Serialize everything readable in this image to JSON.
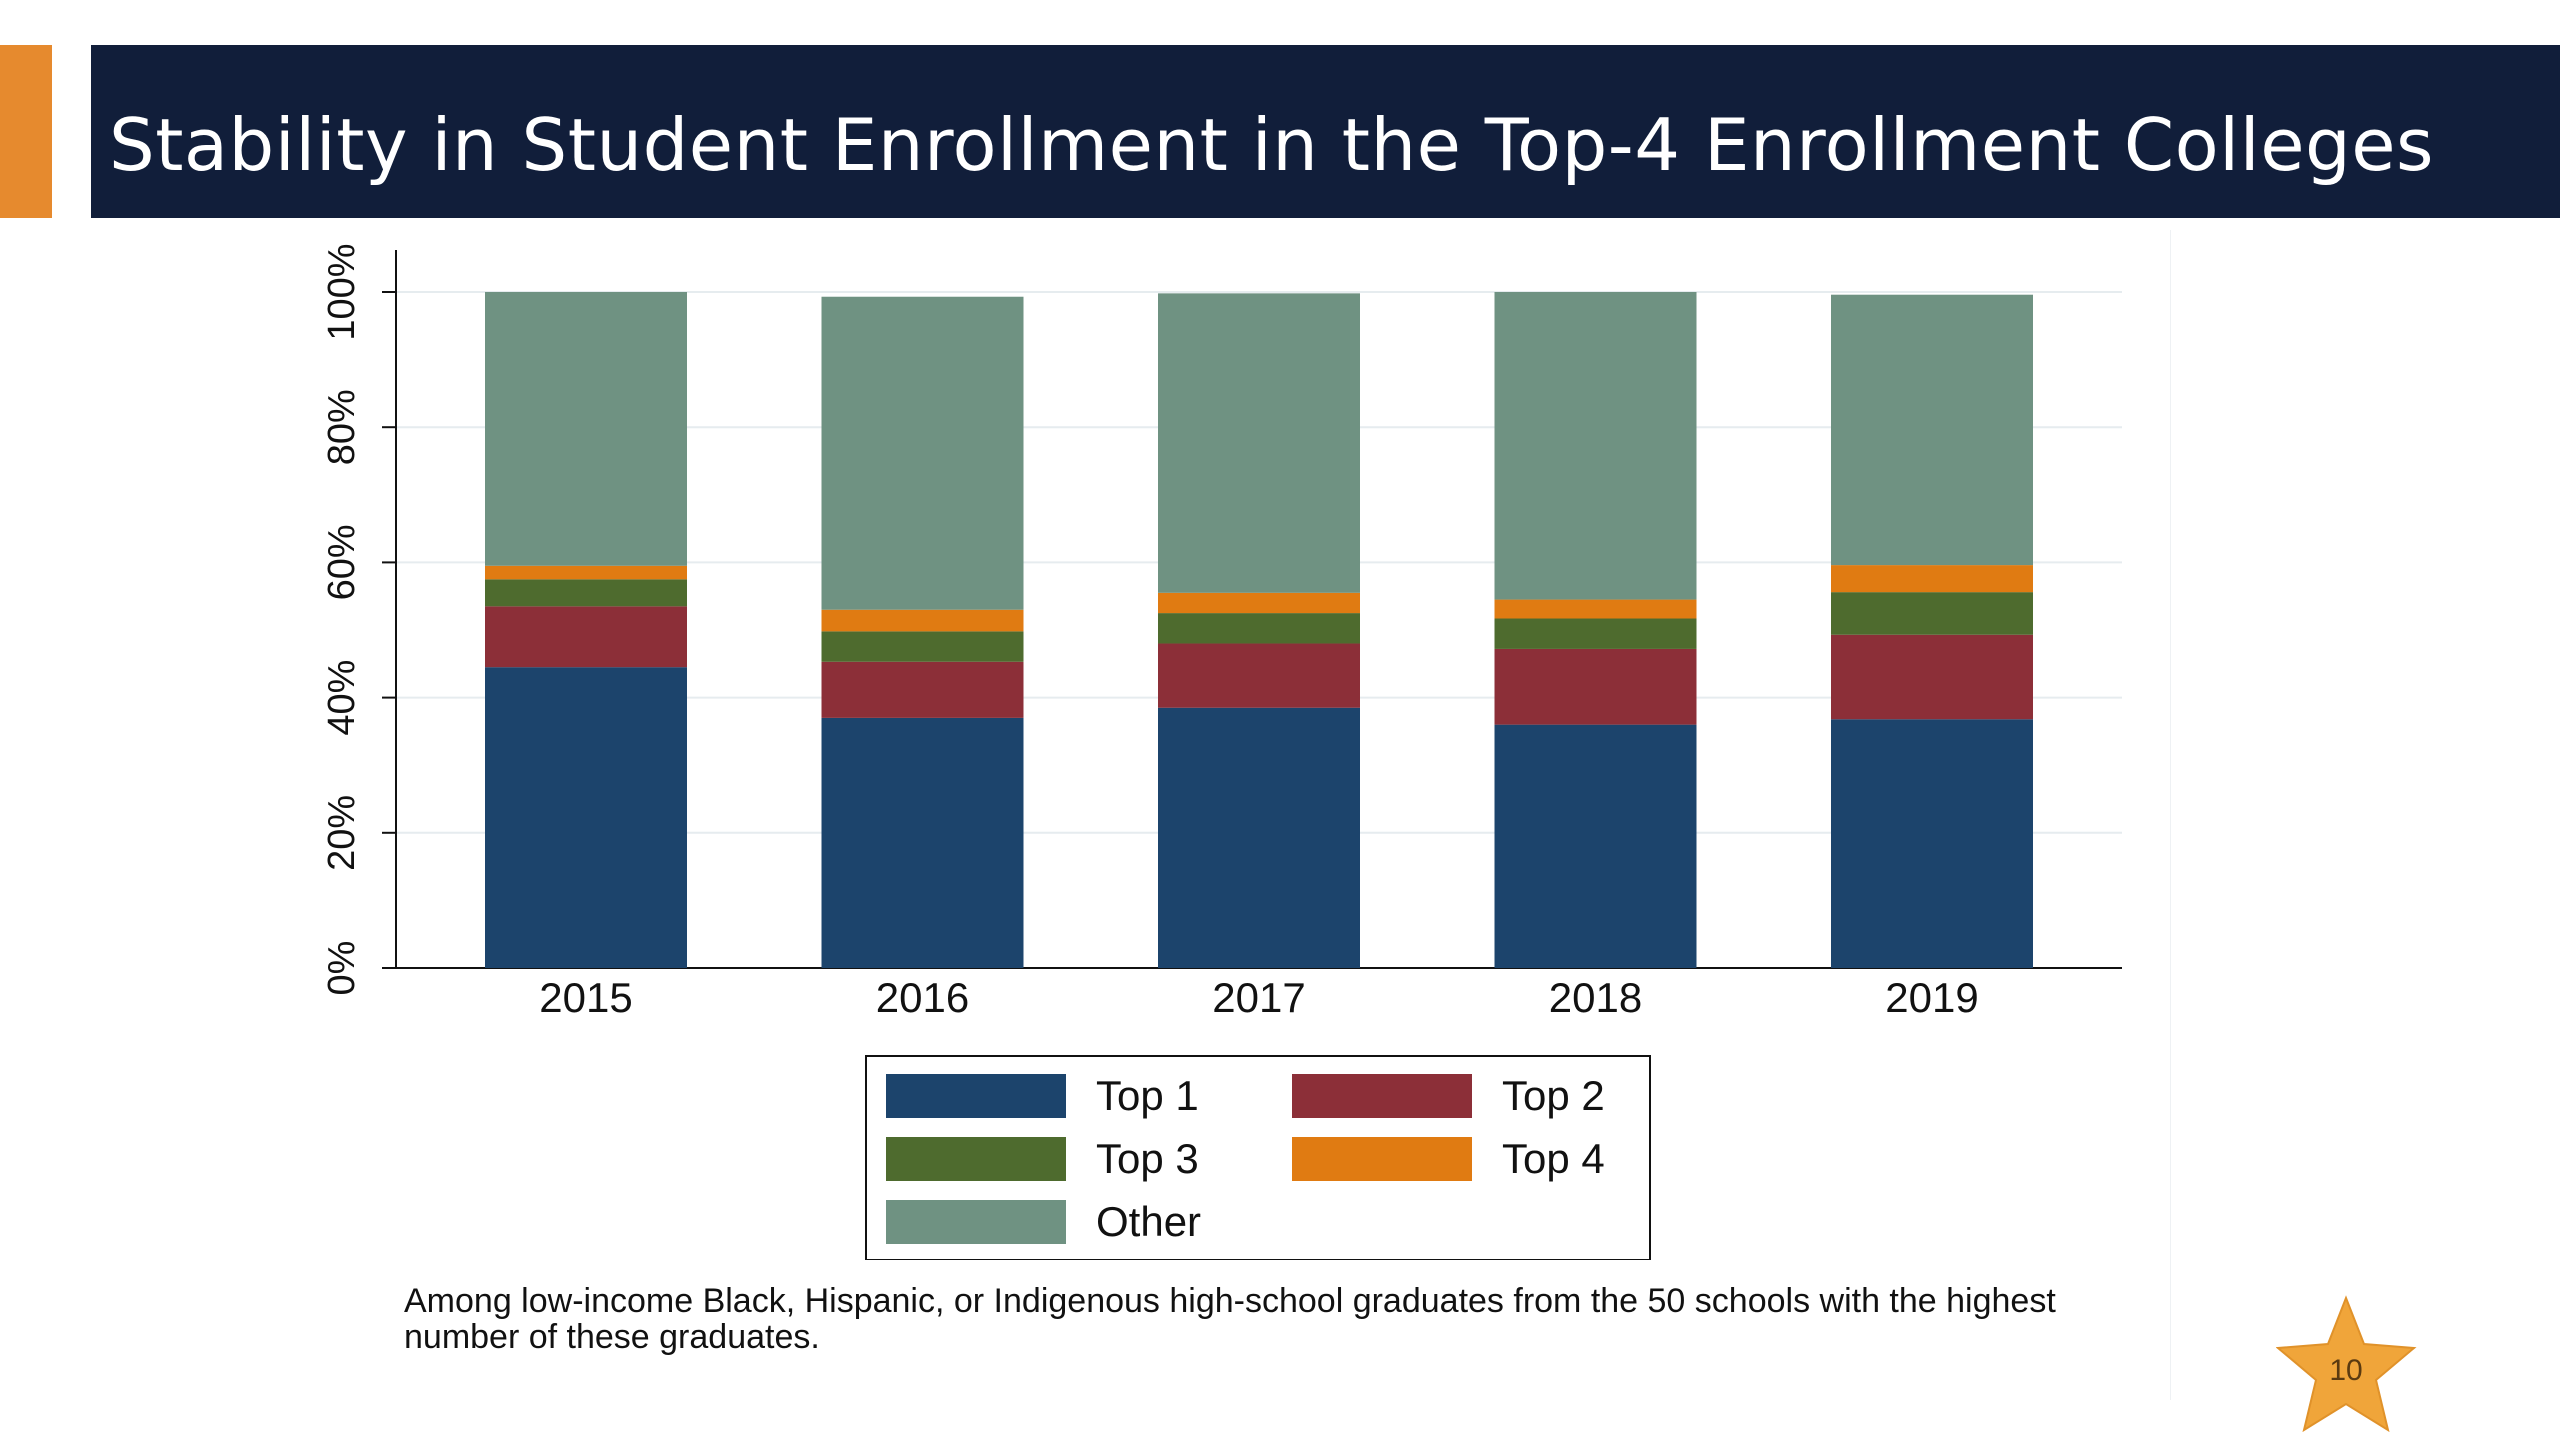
{
  "slide": {
    "title": "Stability in Student Enrollment in the Top-4 Enrollment Colleges",
    "caption": "Among low-income Black, Hispanic, or Indigenous high-school graduates from the 50 schools with the highest number of these graduates.",
    "page_number": "10",
    "colors": {
      "title_bar": "#111E3A",
      "accent": "#E68A2E",
      "star": "#F0A53A"
    }
  },
  "chart_data": {
    "type": "bar",
    "stacked": true,
    "categories": [
      "2015",
      "2016",
      "2017",
      "2018",
      "2019"
    ],
    "series": [
      {
        "name": "Top 1",
        "color": "#1C446C",
        "values": [
          44.5,
          37,
          38.5,
          36,
          36.8
        ]
      },
      {
        "name": "Top 2",
        "color": "#8C2F38",
        "values": [
          9,
          8.3,
          9.5,
          11.2,
          12.5
        ]
      },
      {
        "name": "Top 3",
        "color": "#4E6B2E",
        "values": [
          4,
          4.5,
          4.5,
          4.5,
          6.3
        ]
      },
      {
        "name": "Top 4",
        "color": "#E07B12",
        "values": [
          2,
          3.2,
          3,
          2.8,
          4
        ]
      },
      {
        "name": "Other",
        "color": "#6F9282",
        "values": [
          40.5,
          46.3,
          44.3,
          45.5,
          40
        ]
      }
    ],
    "ylim": [
      0,
      100
    ],
    "yticks": [
      0,
      20,
      40,
      60,
      80,
      100
    ],
    "ytick_labels": [
      "0%",
      "20%",
      "40%",
      "60%",
      "80%",
      "100%"
    ],
    "grid": true,
    "legend_position": "bottom-center"
  }
}
